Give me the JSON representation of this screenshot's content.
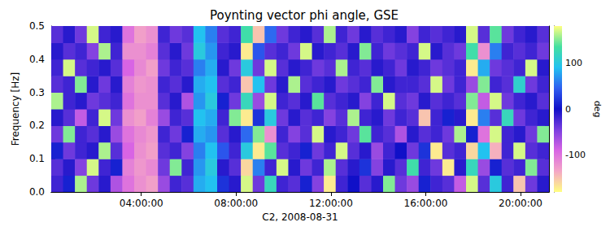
{
  "chart_data": {
    "type": "heatmap",
    "title": "Poynting vector phi angle, GSE",
    "xlabel": "C2, 2008-08-31",
    "ylabel": "Frequency [Hz]",
    "x": [
      0.45,
      0.95,
      1.45,
      1.95,
      2.45,
      2.95,
      3.45,
      3.95,
      4.45,
      4.95,
      5.45,
      5.95,
      6.45,
      6.95,
      7.45,
      7.95,
      8.45,
      8.95,
      9.45,
      9.95,
      10.45,
      10.95,
      11.45,
      11.95,
      12.45,
      12.95,
      13.45,
      13.95,
      14.45,
      14.95,
      15.45,
      15.95,
      16.45,
      16.95,
      17.45,
      17.95,
      18.45,
      18.95,
      19.45,
      19.95,
      20.45,
      20.95
    ],
    "y": [
      0.025,
      0.075,
      0.125,
      0.175,
      0.225,
      0.275,
      0.325,
      0.375,
      0.425,
      0.475
    ],
    "xlim": [
      0.2,
      21.2
    ],
    "xticks": [
      {
        "value": 4,
        "label": "04:00:00"
      },
      {
        "value": 8,
        "label": "08:00:00"
      },
      {
        "value": 12,
        "label": "12:00:00"
      },
      {
        "value": 16,
        "label": "16:00:00"
      },
      {
        "value": 20,
        "label": "20:00:00"
      }
    ],
    "ylim": [
      0,
      0.5
    ],
    "yticks": [
      {
        "value": 0,
        "label": "0.0"
      },
      0.1,
      0.2,
      0.3,
      0.4,
      0.5
    ],
    "clim": [
      -180,
      180
    ],
    "cticks": [
      -100,
      0,
      100
    ],
    "clabel": "deg",
    "values": [
      [
        -20,
        10,
        160,
        -40,
        -10,
        -70,
        -100,
        -120,
        -130,
        -60,
        -20,
        -30,
        80,
        90,
        20,
        -10,
        170,
        -40,
        120,
        -20,
        -30,
        10,
        -50,
        -170,
        -20,
        0,
        -30,
        -10,
        150,
        -40,
        -60,
        10,
        -20,
        -30,
        -80,
        170,
        -30,
        100,
        -20,
        -150,
        -40,
        -10
      ],
      [
        -30,
        -10,
        -50,
        170,
        -20,
        10,
        -110,
        -125,
        -115,
        -40,
        150,
        -20,
        70,
        100,
        -10,
        -30,
        -160,
        60,
        -20,
        170,
        -10,
        -40,
        -20,
        160,
        -30,
        -10,
        20,
        -50,
        -10,
        -30,
        130,
        -20,
        -40,
        -170,
        -10,
        120,
        -60,
        10,
        -30,
        -20,
        150,
        -30
      ],
      [
        10,
        -40,
        -20,
        -10,
        160,
        -30,
        -90,
        -120,
        -130,
        -30,
        -20,
        -50,
        60,
        90,
        40,
        -20,
        100,
        -170,
        140,
        -30,
        -20,
        10,
        -40,
        -20,
        170,
        -30,
        -10,
        -60,
        -20,
        0,
        -40,
        20,
        -170,
        -30,
        -20,
        -160,
        90,
        -140,
        -20,
        170,
        -30,
        -20
      ],
      [
        -40,
        150,
        -20,
        -30,
        -10,
        -60,
        -100,
        -115,
        -125,
        -20,
        -40,
        10,
        80,
        70,
        -30,
        -10,
        50,
        150,
        -120,
        -20,
        -50,
        -30,
        170,
        -10,
        -20,
        -40,
        140,
        -20,
        -30,
        -70,
        -10,
        -30,
        -20,
        -40,
        160,
        10,
        -100,
        170,
        -20,
        -10,
        -40,
        150
      ],
      [
        -10,
        -30,
        -80,
        -20,
        170,
        -40,
        -120,
        -130,
        -110,
        -60,
        -20,
        -30,
        90,
        80,
        -20,
        150,
        -170,
        20,
        100,
        -40,
        -10,
        -30,
        -20,
        -50,
        -30,
        160,
        -20,
        -10,
        -40,
        -20,
        -30,
        -150,
        -20,
        10,
        -10,
        -170,
        60,
        -30,
        120,
        -40,
        -20,
        -10
      ],
      [
        160,
        -20,
        -10,
        -40,
        -30,
        -20,
        -100,
        -120,
        -120,
        -30,
        -10,
        -70,
        70,
        100,
        10,
        -40,
        120,
        -60,
        170,
        -20,
        -30,
        -10,
        140,
        -30,
        -20,
        -10,
        -50,
        -20,
        170,
        -30,
        -40,
        -10,
        -30,
        -20,
        -30,
        150,
        -80,
        170,
        -40,
        -20,
        -10,
        -30
      ],
      [
        -30,
        -20,
        150,
        -10,
        -40,
        -10,
        -110,
        -125,
        -120,
        -20,
        -30,
        -10,
        80,
        90,
        -30,
        -20,
        -150,
        90,
        -40,
        -10,
        160,
        -30,
        -20,
        -10,
        -40,
        -30,
        -20,
        150,
        -10,
        -20,
        -20,
        -30,
        170,
        -40,
        -20,
        -60,
        150,
        -20,
        -30,
        110,
        -40,
        -20
      ],
      [
        -20,
        170,
        -30,
        -20,
        -10,
        -30,
        -90,
        -115,
        -130,
        -40,
        -20,
        -30,
        60,
        80,
        -10,
        -40,
        100,
        -40,
        170,
        -30,
        -10,
        -20,
        -40,
        -30,
        160,
        -20,
        -30,
        -10,
        -20,
        -40,
        -10,
        -20,
        -40,
        -30,
        -20,
        -170,
        80,
        -40,
        -30,
        -20,
        170,
        -10
      ],
      [
        -10,
        -30,
        -20,
        -50,
        160,
        -20,
        -120,
        -120,
        -110,
        -30,
        -10,
        -40,
        100,
        70,
        -20,
        -10,
        -170,
        40,
        -30,
        -20,
        -40,
        170,
        -10,
        -20,
        -30,
        -10,
        150,
        -20,
        -40,
        -30,
        -20,
        170,
        -10,
        -30,
        -40,
        130,
        -120,
        60,
        -20,
        -30,
        -20,
        -40
      ],
      [
        -30,
        -10,
        -40,
        170,
        -20,
        -10,
        -100,
        -130,
        -120,
        -20,
        -40,
        -30,
        90,
        60,
        -30,
        -20,
        130,
        -150,
        50,
        -40,
        -20,
        -10,
        -30,
        160,
        -20,
        -40,
        -10,
        -30,
        -20,
        -10,
        -50,
        -20,
        -30,
        -20,
        -10,
        170,
        -30,
        140,
        -40,
        -20,
        -10,
        -30
      ]
    ]
  }
}
